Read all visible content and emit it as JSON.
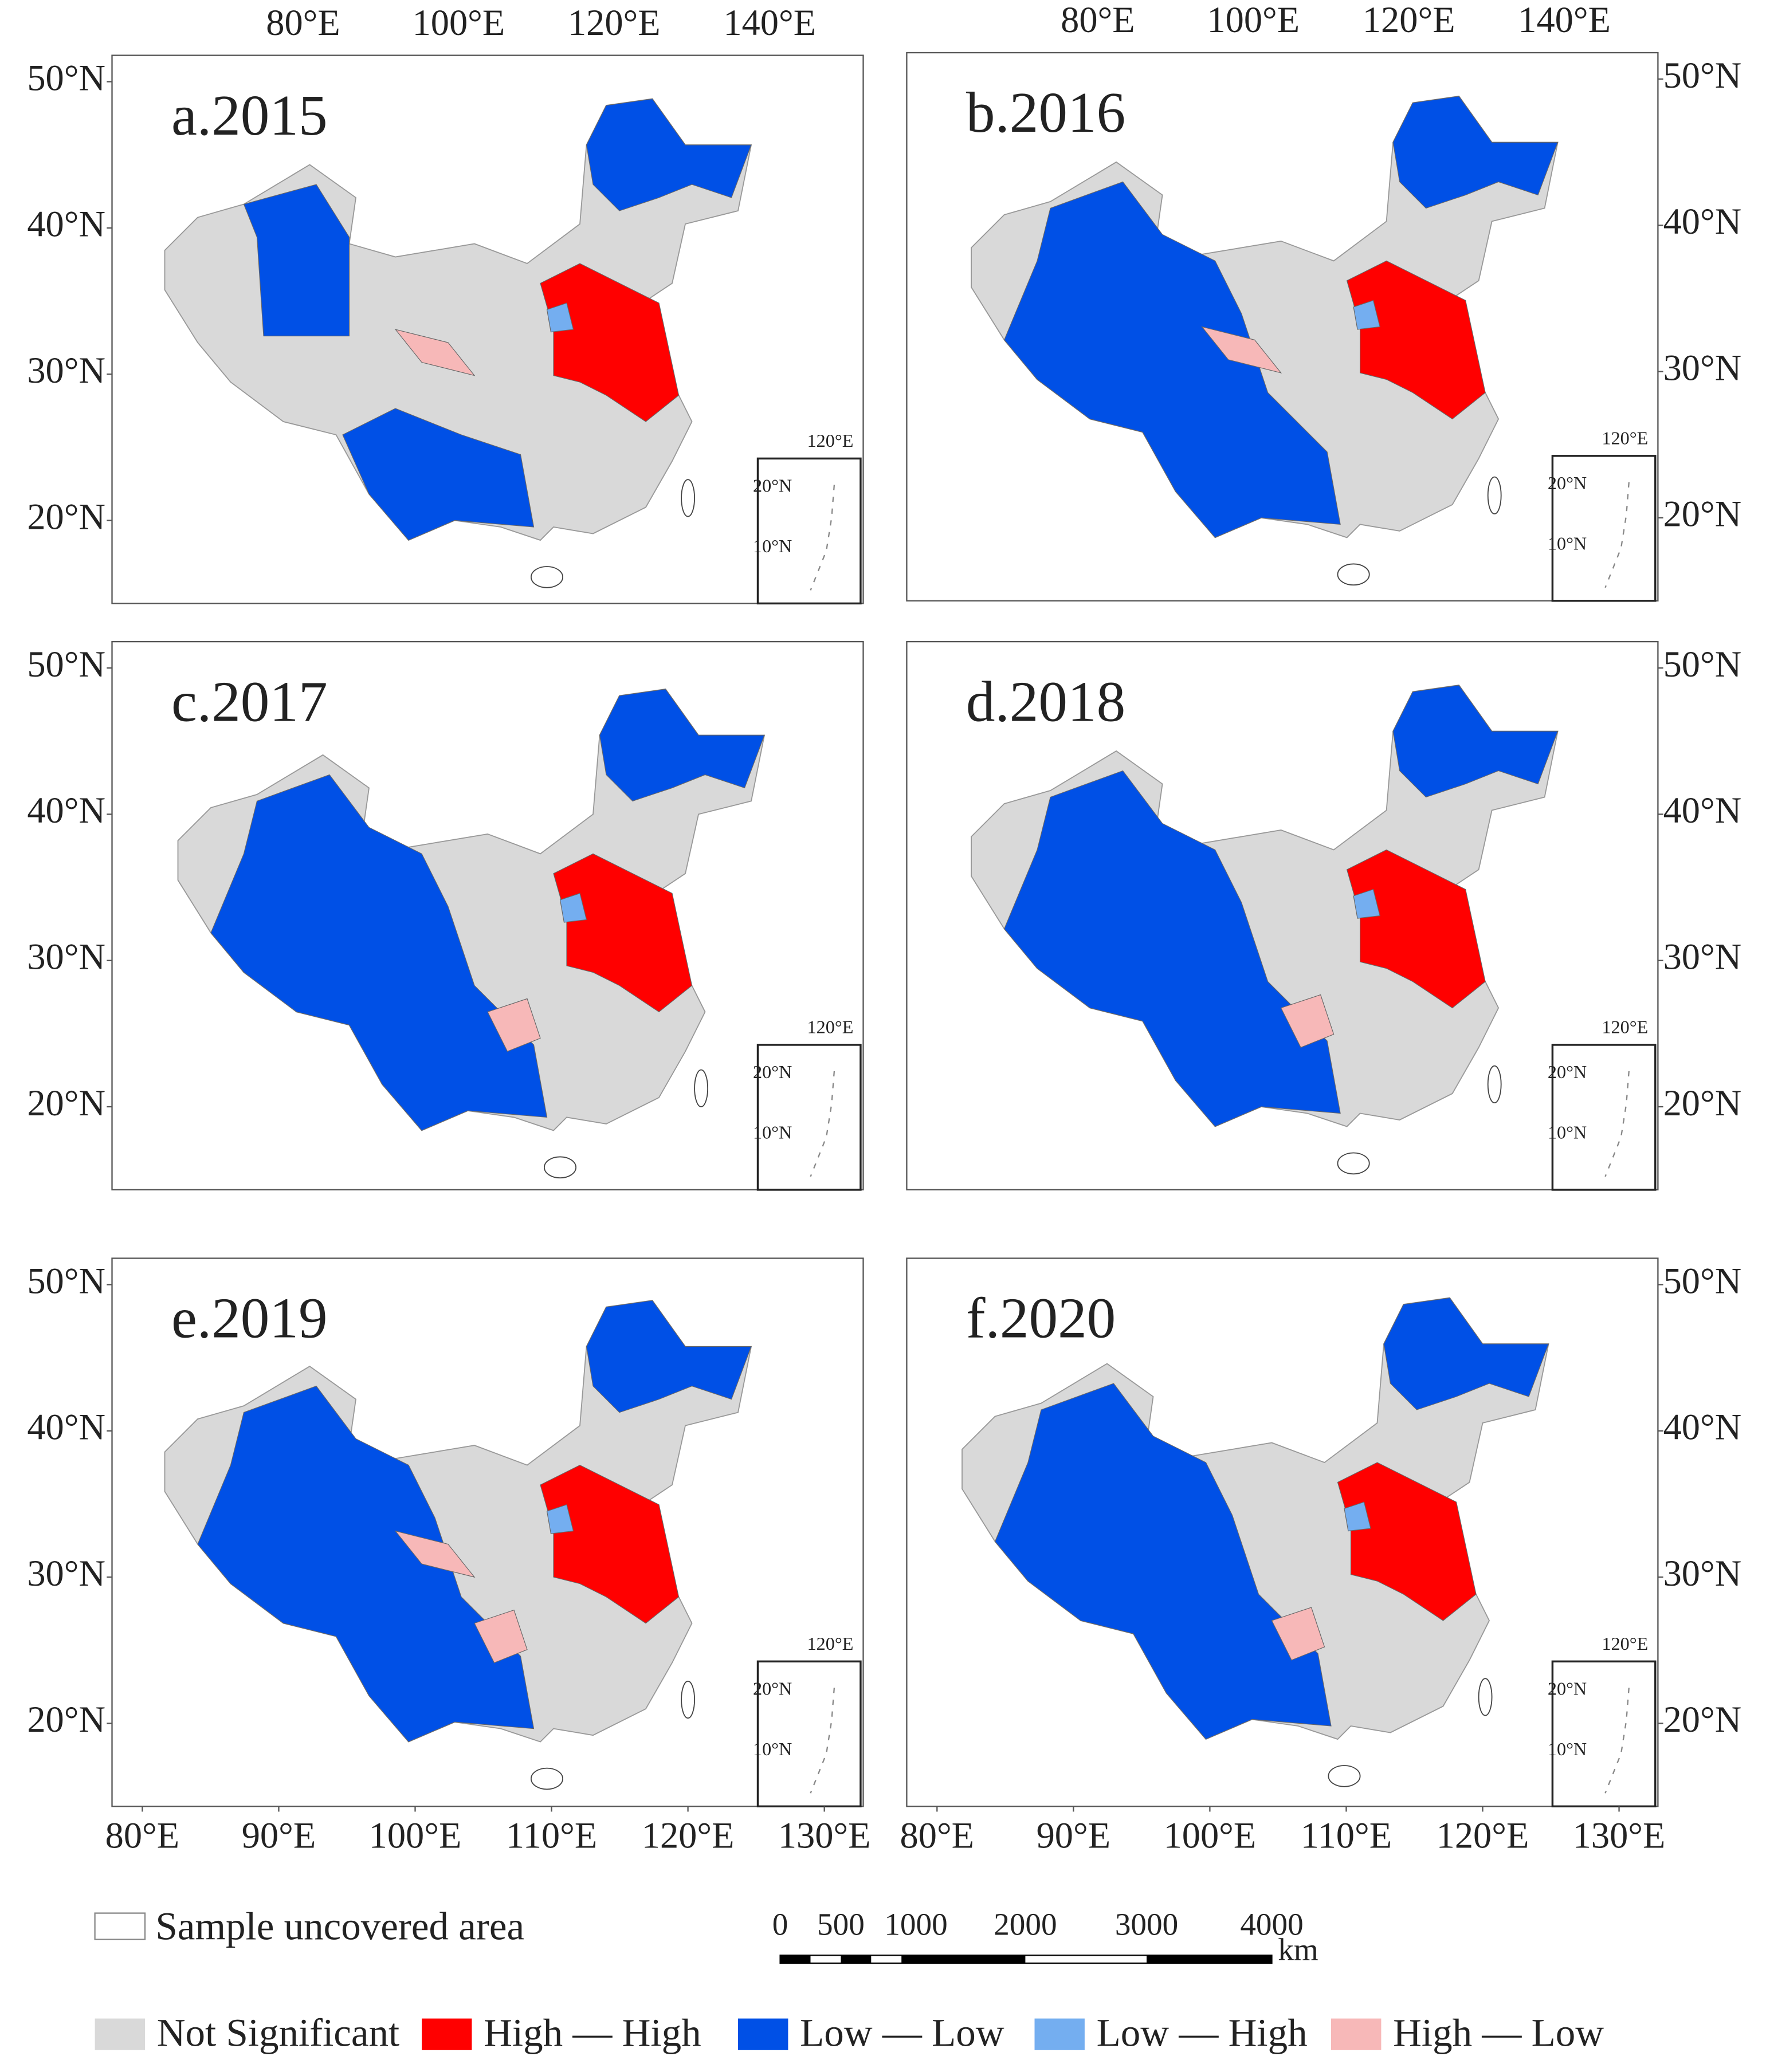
{
  "panels": [
    {
      "label": "a.2015",
      "top_ticks": [
        "80°E",
        "100°E",
        "120°E",
        "140°E"
      ],
      "side_ticks": [
        "50°N",
        "40°N",
        "30°N",
        "20°N"
      ],
      "inset": [
        "120°E",
        "20°N",
        "10°N"
      ]
    },
    {
      "label": "b.2016",
      "top_ticks": [
        "80°E",
        "100°E",
        "120°E",
        "140°E"
      ],
      "side_ticks": [
        "50°N",
        "40°N",
        "30°N",
        "20°N"
      ],
      "inset": [
        "120°E",
        "20°N",
        "10°N"
      ]
    },
    {
      "label": "c.2017",
      "side_ticks": [
        "50°N",
        "40°N",
        "30°N",
        "20°N"
      ],
      "inset": [
        "120°E",
        "20°N",
        "10°N"
      ]
    },
    {
      "label": "d.2018",
      "side_ticks": [
        "50°N",
        "40°N",
        "30°N",
        "20°N"
      ],
      "inset": [
        "120°E",
        "20°N",
        "10°N"
      ]
    },
    {
      "label": "e.2019",
      "side_ticks": [
        "50°N",
        "40°N",
        "30°N",
        "20°N"
      ],
      "bottom_ticks": [
        "80°E",
        "90°E",
        "100°E",
        "110°E",
        "120°E",
        "130°E"
      ],
      "inset": [
        "120°E",
        "20°N",
        "10°N"
      ]
    },
    {
      "label": "f.2020",
      "side_ticks": [
        "50°N",
        "40°N",
        "30°N",
        "20°N"
      ],
      "bottom_ticks": [
        "80°E",
        "90°E",
        "100°E",
        "110°E",
        "120°E",
        "130°E"
      ],
      "inset": [
        "120°E",
        "20°N",
        "10°N"
      ]
    }
  ],
  "legend": {
    "uncovered": "Sample uncovered area",
    "items": [
      {
        "label": "Not Significant",
        "color": "#d9d9d9"
      },
      {
        "label": "High — High",
        "color": "#ff0000"
      },
      {
        "label": "Low — Low",
        "color": "#0050e6"
      },
      {
        "label": "Low — High",
        "color": "#74aef0"
      },
      {
        "label": "High — Low",
        "color": "#f7b8b8"
      }
    ]
  },
  "scale_bar": {
    "labels": [
      "0",
      "500",
      "1000",
      "2000",
      "3000",
      "4000"
    ],
    "unit": "km"
  }
}
